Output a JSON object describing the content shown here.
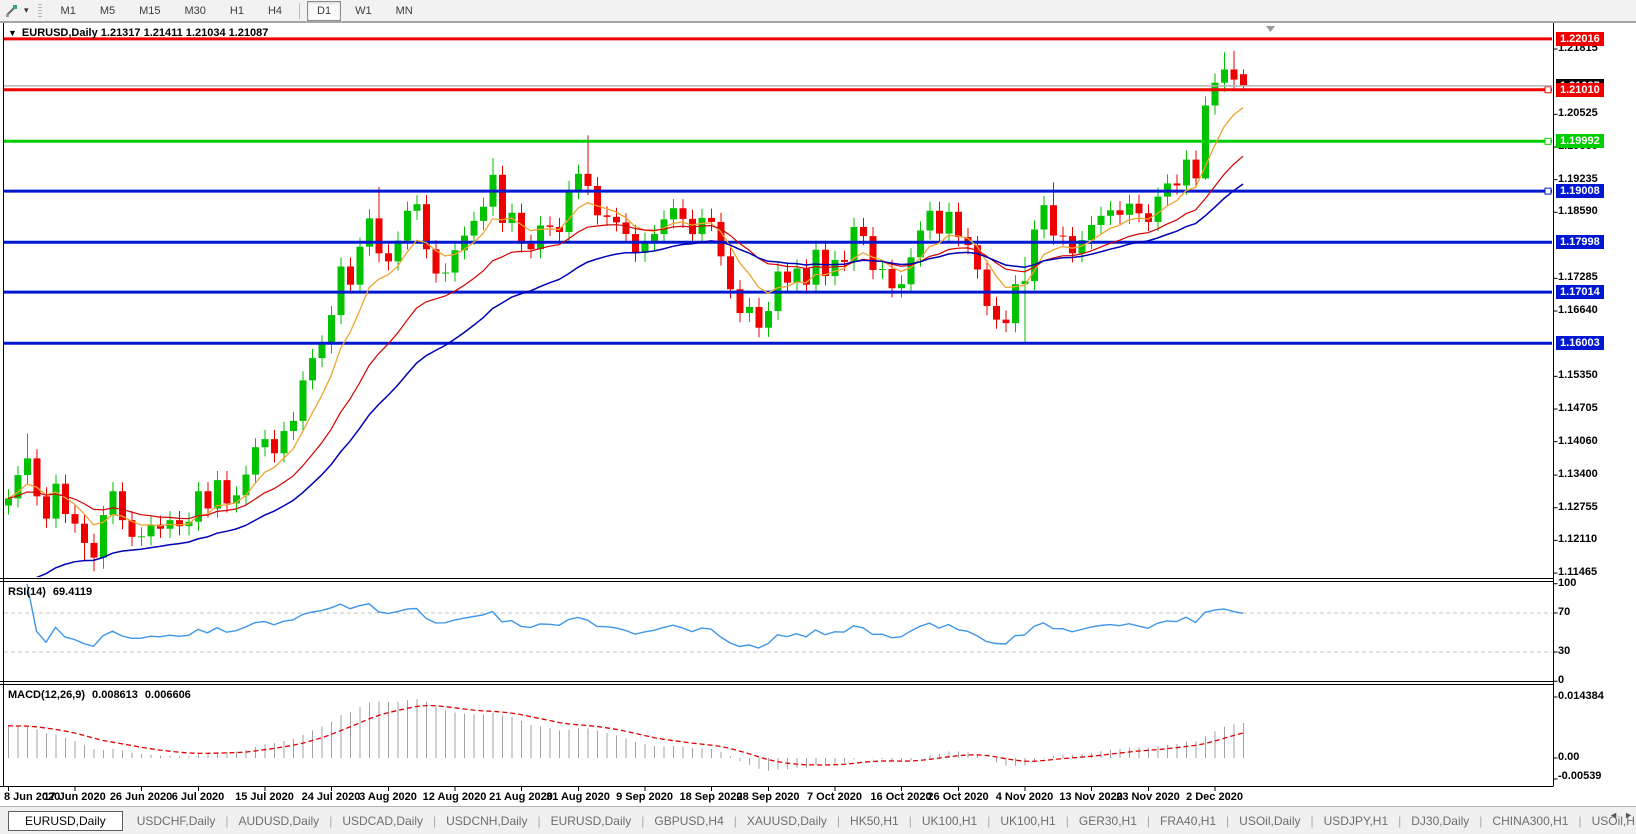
{
  "toolbar": {
    "cursor_tool": "pointer-tool",
    "dropdown_glyph": "▼",
    "timeframes": [
      "M1",
      "M5",
      "M15",
      "M30",
      "H1",
      "H4",
      "D1",
      "W1",
      "MN"
    ],
    "active_timeframe": "D1"
  },
  "main": {
    "title_text": "EURUSD,Daily  1.21317 1.21411 1.21034 1.21087",
    "symbol": "EURUSD,Daily",
    "ohlc": {
      "open": "1.21317",
      "high": "1.21411",
      "low": "1.21034",
      "close": "1.21087"
    }
  },
  "rsi": {
    "name": "RSI(14)",
    "value": "69.4119",
    "line_color": "#3E97E9",
    "level_lines": [
      70,
      30
    ],
    "axis_labels": [
      {
        "text": "100",
        "v": 100
      },
      {
        "text": "70",
        "v": 70
      },
      {
        "text": "30",
        "v": 30
      },
      {
        "text": "0",
        "v": 0
      }
    ]
  },
  "macd": {
    "name": "MACD(12,26,9)",
    "main_value": "0.008613",
    "signal_value": "0.006606",
    "histogram_color": "#a2a2a2",
    "signal_color": "#e00000",
    "axis_labels": [
      {
        "text": "0.014384",
        "v": 0.014384
      },
      {
        "text": "0.00",
        "v": 0
      },
      {
        "text": "-0.00539",
        "v": -0.00539
      }
    ]
  },
  "chart_data": {
    "type": "candlestick",
    "symbol": "EURUSD",
    "timeframe": "Daily",
    "price_axis_range": {
      "top": 1.2224,
      "bottom": 1.11465
    },
    "candle_up_color": "#00C200",
    "candle_down_color": "#EE0000",
    "price_axis_ticks": [
      {
        "text": "1.21815",
        "p": 1.21815
      },
      {
        "text": "1.20525",
        "p": 1.20525
      },
      {
        "text": "1.19880",
        "p": 1.1988
      },
      {
        "text": "1.19235",
        "p": 1.19235
      },
      {
        "text": "1.18590",
        "p": 1.1859
      },
      {
        "text": "1.17285",
        "p": 1.17285
      },
      {
        "text": "1.16640",
        "p": 1.1664
      },
      {
        "text": "1.15350",
        "p": 1.1535
      },
      {
        "text": "1.14705",
        "p": 1.14705
      },
      {
        "text": "1.14060",
        "p": 1.1406
      },
      {
        "text": "1.13400",
        "p": 1.134
      },
      {
        "text": "1.12755",
        "p": 1.12755
      },
      {
        "text": "1.12110",
        "p": 1.1211
      },
      {
        "text": "1.11465",
        "p": 1.11465
      }
    ],
    "levels": [
      {
        "text": "1.22016",
        "p": 1.22016,
        "color": "#F20000",
        "anchor": false
      },
      {
        "text": "1.21010",
        "p": 1.2101,
        "color": "#F20000",
        "anchor": true
      },
      {
        "text": "1.19992",
        "p": 1.19992,
        "color": "#00CE00",
        "anchor": true
      },
      {
        "text": "1.19008",
        "p": 1.19008,
        "color": "#0018D0",
        "anchor": true
      },
      {
        "text": "1.17998",
        "p": 1.17998,
        "color": "#0018D0",
        "anchor": false
      },
      {
        "text": "1.17014",
        "p": 1.17014,
        "color": "#0018D0",
        "anchor": false
      },
      {
        "text": "1.16003",
        "p": 1.16003,
        "color": "#0018D0",
        "anchor": false
      }
    ],
    "current_price": {
      "text": "1.21087",
      "p": 1.21087,
      "line_color": "#b4b4b4"
    },
    "date_labels": [
      {
        "text": "8 Jun 2020",
        "bar": 0
      },
      {
        "text": "17 Jun 2020",
        "bar": 7
      },
      {
        "text": "26 Jun 2020",
        "bar": 14
      },
      {
        "text": "6 Jul 2020",
        "bar": 20
      },
      {
        "text": "15 Jul 2020",
        "bar": 27
      },
      {
        "text": "24 Jul 2020",
        "bar": 34
      },
      {
        "text": "3 Aug 2020",
        "bar": 40
      },
      {
        "text": "12 Aug 2020",
        "bar": 47
      },
      {
        "text": "21 Aug 2020",
        "bar": 54
      },
      {
        "text": "31 Aug 2020",
        "bar": 60
      },
      {
        "text": "9 Sep 2020",
        "bar": 67
      },
      {
        "text": "18 Sep 2020",
        "bar": 74
      },
      {
        "text": "28 Sep 2020",
        "bar": 80
      },
      {
        "text": "7 Oct 2020",
        "bar": 87
      },
      {
        "text": "16 Oct 2020",
        "bar": 94
      },
      {
        "text": "26 Oct 2020",
        "bar": 100
      },
      {
        "text": "4 Nov 2020",
        "bar": 107
      },
      {
        "text": "13 Nov 2020",
        "bar": 114
      },
      {
        "text": "23 Nov 2020",
        "bar": 120
      },
      {
        "text": "2 Dec 2020",
        "bar": 127
      }
    ],
    "moving_averages": [
      {
        "name": "ma-fast",
        "period": 7,
        "color": "#EFA431",
        "width": 1.3,
        "seed": null
      },
      {
        "name": "ma-mid",
        "period": 18,
        "color": "#D40000",
        "width": 1.2,
        "seed": null
      },
      {
        "name": "ma-slow",
        "period": 30,
        "color": "#0000B6",
        "width": 1.5,
        "seed": 1.108
      }
    ],
    "candles": [
      [
        1.128,
        1.1312,
        1.1262,
        1.1294
      ],
      [
        1.1294,
        1.1358,
        1.1276,
        1.134
      ],
      [
        1.134,
        1.1422,
        1.1322,
        1.1373
      ],
      [
        1.1373,
        1.1391,
        1.128,
        1.1298
      ],
      [
        1.1298,
        1.1316,
        1.1236,
        1.1254
      ],
      [
        1.1254,
        1.1341,
        1.1236,
        1.1323
      ],
      [
        1.1323,
        1.1341,
        1.1245,
        1.1263
      ],
      [
        1.1263,
        1.1281,
        1.1226,
        1.1244
      ],
      [
        1.1244,
        1.1262,
        1.1172,
        1.1206
      ],
      [
        1.1206,
        1.1224,
        1.115,
        1.1177
      ],
      [
        1.1177,
        1.1279,
        1.1155,
        1.1261
      ],
      [
        1.1261,
        1.1326,
        1.1243,
        1.1308
      ],
      [
        1.1308,
        1.1326,
        1.1233,
        1.1251
      ],
      [
        1.1251,
        1.1269,
        1.12,
        1.1218
      ],
      [
        1.1218,
        1.1237,
        1.12,
        1.1219
      ],
      [
        1.1219,
        1.126,
        1.1201,
        1.1242
      ],
      [
        1.1242,
        1.126,
        1.1216,
        1.1234
      ],
      [
        1.1234,
        1.1269,
        1.1216,
        1.1251
      ],
      [
        1.1251,
        1.1269,
        1.1221,
        1.1239
      ],
      [
        1.1239,
        1.1266,
        1.1221,
        1.1248
      ],
      [
        1.1248,
        1.1326,
        1.123,
        1.1308
      ],
      [
        1.1308,
        1.1326,
        1.1256,
        1.1274
      ],
      [
        1.1274,
        1.1348,
        1.1256,
        1.133
      ],
      [
        1.133,
        1.1348,
        1.1266,
        1.1284
      ],
      [
        1.1284,
        1.1318,
        1.1266,
        1.13
      ],
      [
        1.13,
        1.1359,
        1.1282,
        1.1341
      ],
      [
        1.1341,
        1.1413,
        1.1323,
        1.1395
      ],
      [
        1.1395,
        1.1429,
        1.1377,
        1.1411
      ],
      [
        1.1411,
        1.1429,
        1.1365,
        1.1383
      ],
      [
        1.1383,
        1.1445,
        1.1365,
        1.1427
      ],
      [
        1.1427,
        1.1465,
        1.1409,
        1.1447
      ],
      [
        1.1447,
        1.1545,
        1.1429,
        1.1527
      ],
      [
        1.1527,
        1.1589,
        1.1509,
        1.1571
      ],
      [
        1.1571,
        1.1616,
        1.1553,
        1.1598
      ],
      [
        1.1598,
        1.1674,
        1.158,
        1.1656
      ],
      [
        1.1656,
        1.177,
        1.1638,
        1.1752
      ],
      [
        1.1752,
        1.177,
        1.1698,
        1.1716
      ],
      [
        1.1716,
        1.1809,
        1.1698,
        1.1791
      ],
      [
        1.1791,
        1.1865,
        1.1773,
        1.1847
      ],
      [
        1.1847,
        1.1909,
        1.176,
        1.1778
      ],
      [
        1.1778,
        1.1796,
        1.1744,
        1.1762
      ],
      [
        1.1762,
        1.1821,
        1.1744,
        1.1803
      ],
      [
        1.1803,
        1.188,
        1.1785,
        1.1862
      ],
      [
        1.1862,
        1.1893,
        1.1844,
        1.1875
      ],
      [
        1.1875,
        1.1893,
        1.1768,
        1.1786
      ],
      [
        1.1786,
        1.1804,
        1.172,
        1.1738
      ],
      [
        1.1738,
        1.1758,
        1.1722,
        1.174
      ],
      [
        1.174,
        1.1802,
        1.1722,
        1.1784
      ],
      [
        1.1784,
        1.1831,
        1.1766,
        1.1813
      ],
      [
        1.1813,
        1.186,
        1.1795,
        1.1842
      ],
      [
        1.1842,
        1.1888,
        1.1824,
        1.187
      ],
      [
        1.187,
        1.1966,
        1.1852,
        1.1933
      ],
      [
        1.1933,
        1.1951,
        1.182,
        1.1838
      ],
      [
        1.1838,
        1.1876,
        1.182,
        1.1858
      ],
      [
        1.1858,
        1.1876,
        1.1779,
        1.1797
      ],
      [
        1.1797,
        1.1815,
        1.1768,
        1.1786
      ],
      [
        1.1786,
        1.1851,
        1.1768,
        1.1833
      ],
      [
        1.1833,
        1.1851,
        1.1812,
        1.183
      ],
      [
        1.183,
        1.1848,
        1.1802,
        1.182
      ],
      [
        1.182,
        1.1921,
        1.1802,
        1.1903
      ],
      [
        1.1903,
        1.1953,
        1.1885,
        1.1935
      ],
      [
        1.1935,
        1.2011,
        1.1893,
        1.1911
      ],
      [
        1.1911,
        1.1929,
        1.1835,
        1.1853
      ],
      [
        1.1853,
        1.1871,
        1.1832,
        1.185
      ],
      [
        1.185,
        1.1868,
        1.1821,
        1.1839
      ],
      [
        1.1839,
        1.1857,
        1.1798,
        1.1816
      ],
      [
        1.1816,
        1.1834,
        1.1761,
        1.1779
      ],
      [
        1.1779,
        1.1819,
        1.1761,
        1.1801
      ],
      [
        1.1801,
        1.1834,
        1.1783,
        1.1816
      ],
      [
        1.1816,
        1.1863,
        1.1798,
        1.1845
      ],
      [
        1.1845,
        1.1885,
        1.1827,
        1.1867
      ],
      [
        1.1867,
        1.1885,
        1.1828,
        1.1846
      ],
      [
        1.1846,
        1.1864,
        1.1798,
        1.1816
      ],
      [
        1.1816,
        1.1866,
        1.1798,
        1.1848
      ],
      [
        1.1848,
        1.1866,
        1.1822,
        1.184
      ],
      [
        1.184,
        1.1858,
        1.1754,
        1.1772
      ],
      [
        1.1772,
        1.179,
        1.1689,
        1.1707
      ],
      [
        1.1707,
        1.1725,
        1.1642,
        1.166
      ],
      [
        1.166,
        1.169,
        1.1642,
        1.1672
      ],
      [
        1.1672,
        1.169,
        1.1612,
        1.1631
      ],
      [
        1.1631,
        1.1682,
        1.1613,
        1.1664
      ],
      [
        1.1664,
        1.176,
        1.1646,
        1.1742
      ],
      [
        1.1742,
        1.176,
        1.1702,
        1.172
      ],
      [
        1.172,
        1.1766,
        1.1702,
        1.1748
      ],
      [
        1.1748,
        1.1766,
        1.1698,
        1.1716
      ],
      [
        1.1716,
        1.1803,
        1.1698,
        1.1785
      ],
      [
        1.1785,
        1.1803,
        1.1715,
        1.1733
      ],
      [
        1.1733,
        1.1783,
        1.1715,
        1.1765
      ],
      [
        1.1765,
        1.1783,
        1.1743,
        1.1761
      ],
      [
        1.1761,
        1.1848,
        1.1743,
        1.183
      ],
      [
        1.183,
        1.1848,
        1.1794,
        1.1812
      ],
      [
        1.1812,
        1.183,
        1.1727,
        1.1745
      ],
      [
        1.1745,
        1.1765,
        1.1727,
        1.1747
      ],
      [
        1.1747,
        1.1765,
        1.1691,
        1.1709
      ],
      [
        1.1709,
        1.1735,
        1.1691,
        1.1717
      ],
      [
        1.1717,
        1.1788,
        1.1699,
        1.177
      ],
      [
        1.177,
        1.1841,
        1.1752,
        1.1823
      ],
      [
        1.1823,
        1.188,
        1.1805,
        1.1862
      ],
      [
        1.1862,
        1.188,
        1.1799,
        1.1817
      ],
      [
        1.1817,
        1.1878,
        1.1799,
        1.186
      ],
      [
        1.186,
        1.1878,
        1.1792,
        1.181
      ],
      [
        1.181,
        1.1828,
        1.1776,
        1.1794
      ],
      [
        1.1794,
        1.1812,
        1.1728,
        1.1746
      ],
      [
        1.1746,
        1.1764,
        1.1656,
        1.1674
      ],
      [
        1.1674,
        1.1692,
        1.1629,
        1.1647
      ],
      [
        1.1647,
        1.1665,
        1.1622,
        1.164
      ],
      [
        1.164,
        1.1735,
        1.1622,
        1.1717
      ],
      [
        1.1717,
        1.1771,
        1.1603,
        1.1723
      ],
      [
        1.1723,
        1.1843,
        1.1705,
        1.1825
      ],
      [
        1.1825,
        1.1891,
        1.1807,
        1.1873
      ],
      [
        1.1873,
        1.1918,
        1.1795,
        1.1813
      ],
      [
        1.1813,
        1.1831,
        1.1794,
        1.1812
      ],
      [
        1.1812,
        1.183,
        1.176,
        1.1778
      ],
      [
        1.1778,
        1.1822,
        1.176,
        1.1804
      ],
      [
        1.1804,
        1.1852,
        1.1786,
        1.1834
      ],
      [
        1.1834,
        1.187,
        1.1816,
        1.1852
      ],
      [
        1.1852,
        1.1881,
        1.1834,
        1.1863
      ],
      [
        1.1863,
        1.1881,
        1.1836,
        1.1854
      ],
      [
        1.1854,
        1.1894,
        1.1836,
        1.1876
      ],
      [
        1.1876,
        1.1894,
        1.1839,
        1.1857
      ],
      [
        1.1857,
        1.1875,
        1.1822,
        1.184
      ],
      [
        1.184,
        1.1908,
        1.1822,
        1.189
      ],
      [
        1.189,
        1.1934,
        1.1872,
        1.1916
      ],
      [
        1.1916,
        1.1934,
        1.1894,
        1.1912
      ],
      [
        1.1912,
        1.1981,
        1.1894,
        1.1963
      ],
      [
        1.1963,
        1.1981,
        1.1908,
        1.1926
      ],
      [
        1.1926,
        1.2088,
        1.1923,
        1.207
      ],
      [
        1.207,
        1.2133,
        1.2052,
        1.2115
      ],
      [
        1.2115,
        1.2175,
        1.2097,
        1.2141
      ],
      [
        1.2141,
        1.2178,
        1.2103,
        1.2121
      ],
      [
        1.21317,
        1.21411,
        1.21034,
        1.21087
      ]
    ]
  },
  "tabs": {
    "left_arrow": "◄",
    "right_arrow": "►",
    "items": [
      {
        "label": "EURUSD,Daily",
        "active": true
      },
      {
        "label": "USDCHF,Daily",
        "active": false
      },
      {
        "label": "AUDUSD,Daily",
        "active": false
      },
      {
        "label": "USDCAD,Daily",
        "active": false
      },
      {
        "label": "USDCNH,Daily",
        "active": false
      },
      {
        "label": "EURUSD,Daily",
        "active": false
      },
      {
        "label": "GBPUSD,H4",
        "active": false
      },
      {
        "label": "XAUUSD,Daily",
        "active": false
      },
      {
        "label": "HK50,H1",
        "active": false
      },
      {
        "label": "UK100,H1",
        "active": false
      },
      {
        "label": "UK100,H1",
        "active": false
      },
      {
        "label": "GER30,H1",
        "active": false
      },
      {
        "label": "FRA40,H1",
        "active": false
      },
      {
        "label": "USOil,Daily",
        "active": false
      },
      {
        "label": "USDJPY,H1",
        "active": false
      },
      {
        "label": "DJ30,Daily",
        "active": false
      },
      {
        "label": "CHINA300,H1",
        "active": false
      },
      {
        "label": "USOil,H1",
        "active": false
      }
    ]
  }
}
